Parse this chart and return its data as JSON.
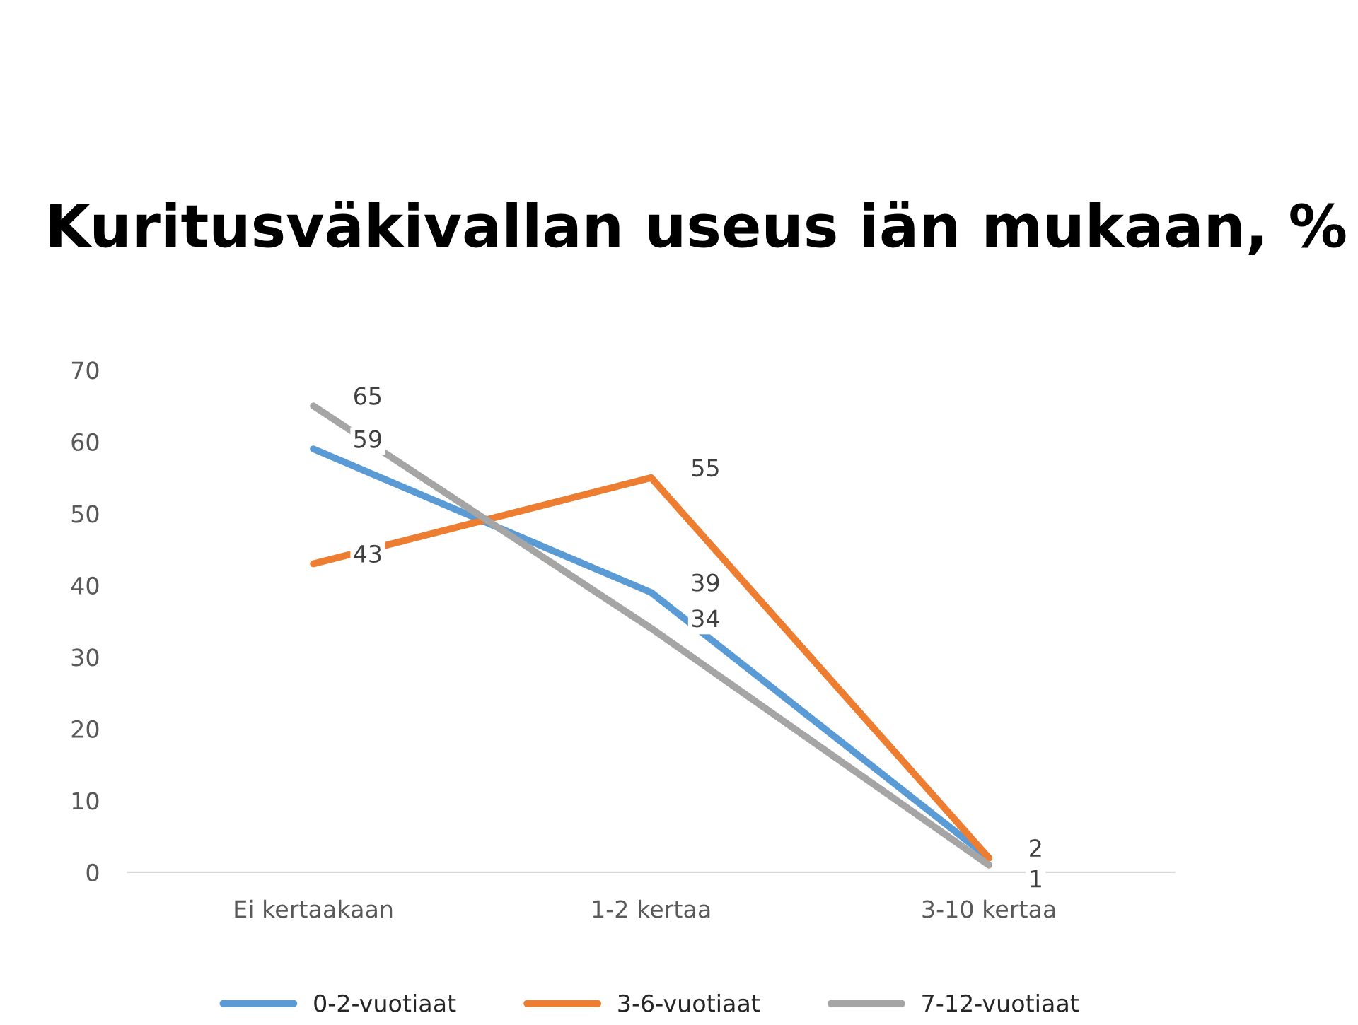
{
  "chart_data": {
    "type": "line",
    "title": "Kuritusväkivallan useus iän mukaan, %",
    "categories": [
      "Ei kertaakaan",
      "1-2 kertaa",
      "3-10 kertaa"
    ],
    "series": [
      {
        "name": "0-2-vuotiaat",
        "color": "#5b9bd5",
        "values": [
          59,
          39,
          2
        ],
        "value_labels": [
          "59",
          "39",
          "2"
        ]
      },
      {
        "name": "3-6-vuotiaat",
        "color": "#ed7d31",
        "values": [
          43,
          55,
          2
        ],
        "value_labels": [
          "43",
          "55",
          null
        ]
      },
      {
        "name": "7-12-vuotiaat",
        "color": "#a5a5a5",
        "values": [
          65,
          34,
          1
        ],
        "value_labels": [
          "65",
          "34",
          "1"
        ]
      }
    ],
    "ylim": [
      0,
      70
    ],
    "yticks": [
      0,
      10,
      20,
      30,
      40,
      50,
      60,
      70
    ],
    "grid": false,
    "legend": "bottom",
    "marker": "none",
    "line_style": "solid"
  }
}
